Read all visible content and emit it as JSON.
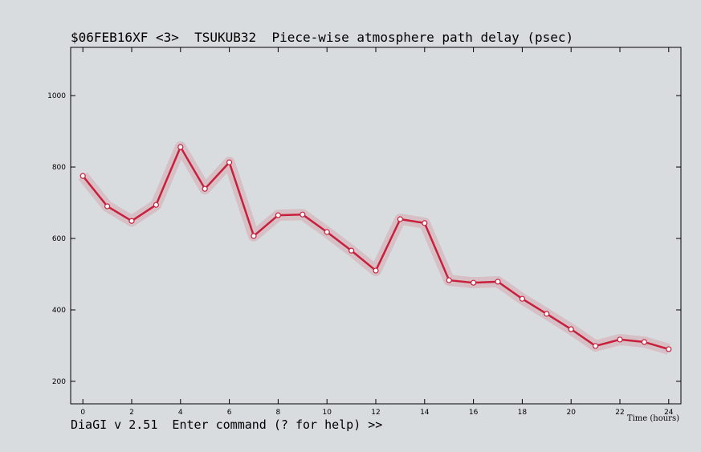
{
  "chart_data": {
    "type": "line",
    "title": "$06FEB16XF <3>  TSUKUB32  Piece-wise atmosphere path delay (psec)",
    "x_label": "Time (hours)",
    "x": [
      0,
      1,
      2,
      3,
      4,
      5,
      6,
      7,
      8,
      9,
      10,
      11,
      12,
      13,
      14,
      15,
      16,
      17,
      18,
      19,
      20,
      21,
      22,
      23,
      24
    ],
    "series": [
      {
        "name": "TSUKUB32",
        "color": "#c8203c",
        "values": [
          775,
          690,
          649,
          694,
          856,
          739,
          813,
          607,
          665,
          667,
          618,
          566,
          510,
          654,
          643,
          483,
          476,
          479,
          431,
          389,
          346,
          299,
          317,
          310,
          290
        ]
      }
    ],
    "xlim": [
      -0.5,
      24.5
    ],
    "xticks": [
      0,
      2,
      4,
      6,
      8,
      10,
      12,
      14,
      16,
      18,
      20,
      22,
      24
    ],
    "ylim": [
      137,
      1135
    ],
    "yticks": [
      200,
      400,
      600,
      800,
      1000
    ],
    "footer": "DiaGI v 2.51  Enter command (? for help) >>"
  }
}
